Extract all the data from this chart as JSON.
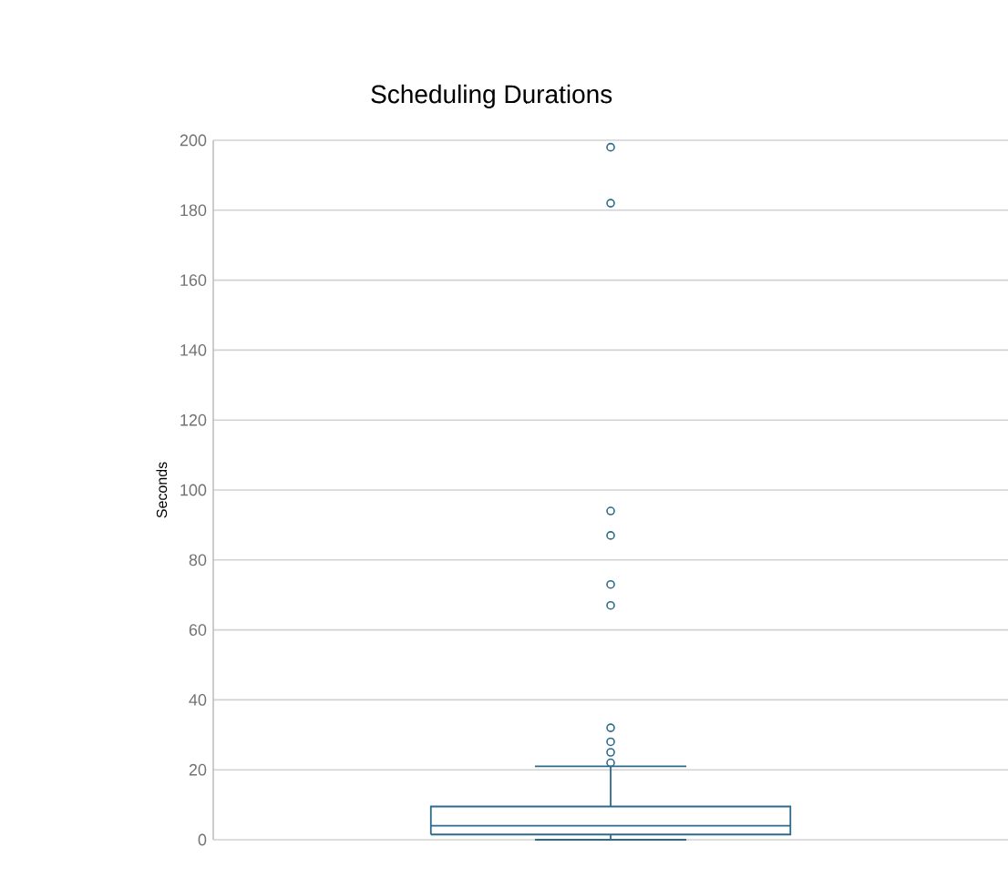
{
  "chart_data": {
    "type": "box",
    "title": "Scheduling Durations",
    "ylabel": "Seconds",
    "categories": [
      null
    ],
    "boxes": [
      {
        "low": 0,
        "q1": 1.5,
        "median": 4,
        "q3": 9.5,
        "high": 21,
        "outliers": [
          198,
          182,
          94,
          87,
          73,
          67,
          32,
          28,
          25,
          22
        ]
      }
    ],
    "color": "#2e6b8a",
    "ylim": [
      0,
      200
    ],
    "yticks": [
      0,
      20,
      40,
      60,
      80,
      100,
      120,
      140,
      160,
      180,
      200
    ],
    "grid": "y"
  }
}
